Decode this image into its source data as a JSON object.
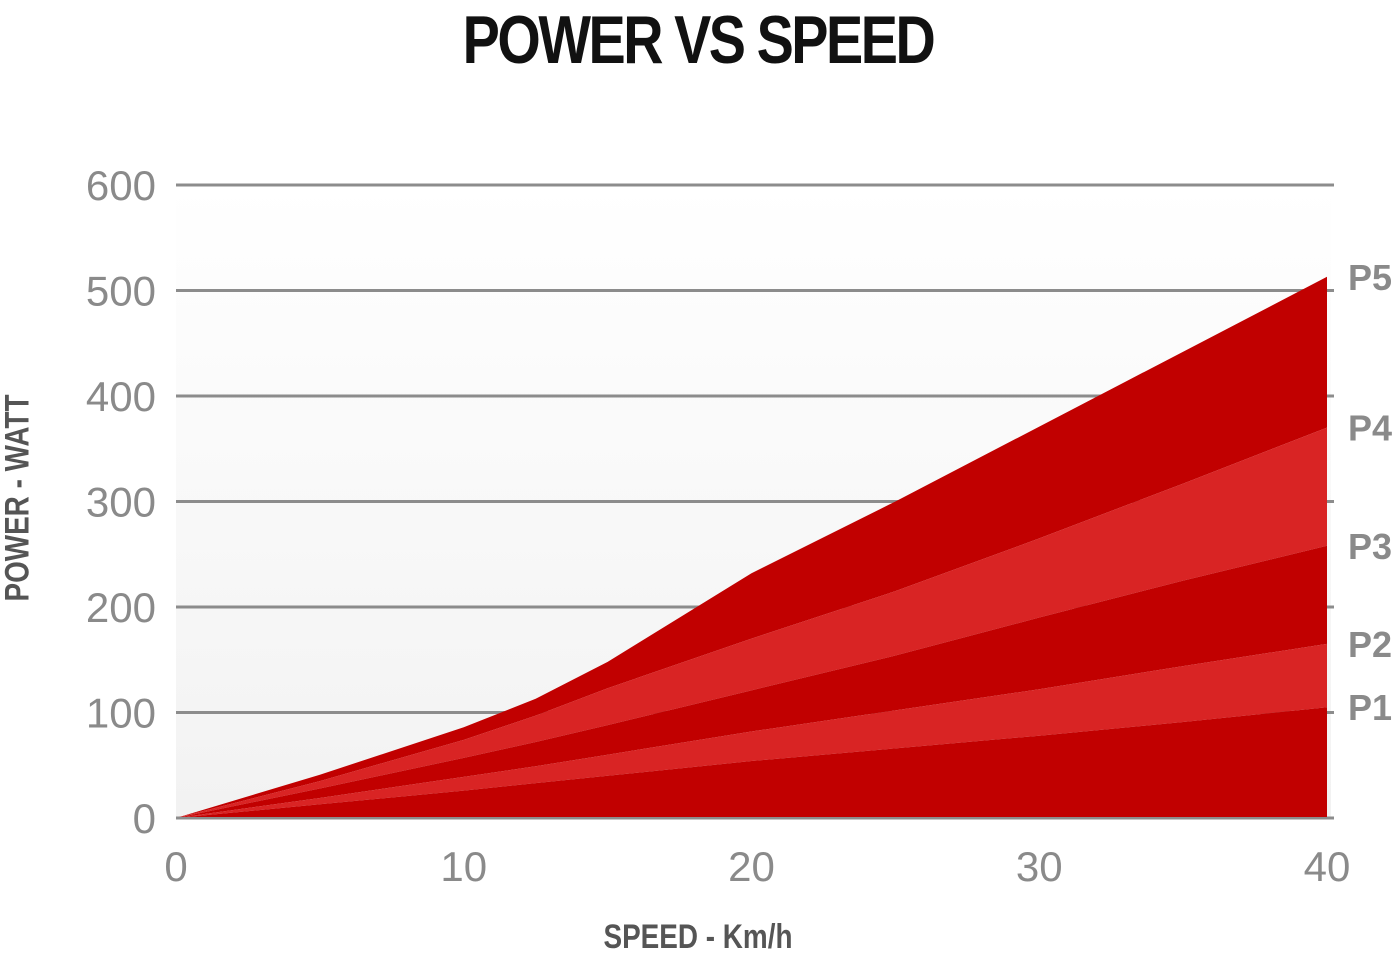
{
  "chart_data": {
    "type": "area",
    "title": "POWER VS SPEED",
    "xlabel": "SPEED - Km/h",
    "ylabel": "POWER - WATT",
    "xlim": [
      0,
      40
    ],
    "ylim": [
      0,
      600
    ],
    "x_ticks": [
      0,
      10,
      20,
      30,
      40
    ],
    "y_ticks": [
      0,
      100,
      200,
      300,
      400,
      500,
      600
    ],
    "grid": "horizontal",
    "x": [
      0,
      5,
      10,
      12.5,
      15,
      20,
      25,
      30,
      35,
      40
    ],
    "series": [
      {
        "name": "P1",
        "values": [
          0,
          13,
          26,
          33,
          40,
          54,
          66,
          78,
          91,
          105
        ],
        "color": "#c10000"
      },
      {
        "name": "P2",
        "values": [
          0,
          19,
          39,
          49,
          60,
          82,
          102,
          122,
          144,
          165
        ],
        "color": "#d92424"
      },
      {
        "name": "P3",
        "values": [
          0,
          28,
          57,
          72,
          88,
          121,
          154,
          190,
          225,
          258
        ],
        "color": "#c10000"
      },
      {
        "name": "P4",
        "values": [
          0,
          35,
          74,
          97,
          123,
          170,
          215,
          265,
          317,
          370
        ],
        "color": "#d92424"
      },
      {
        "name": "P5",
        "values": [
          0,
          41,
          86,
          113,
          148,
          232,
          300,
          371,
          442,
          513
        ],
        "color": "#c10000"
      }
    ]
  }
}
